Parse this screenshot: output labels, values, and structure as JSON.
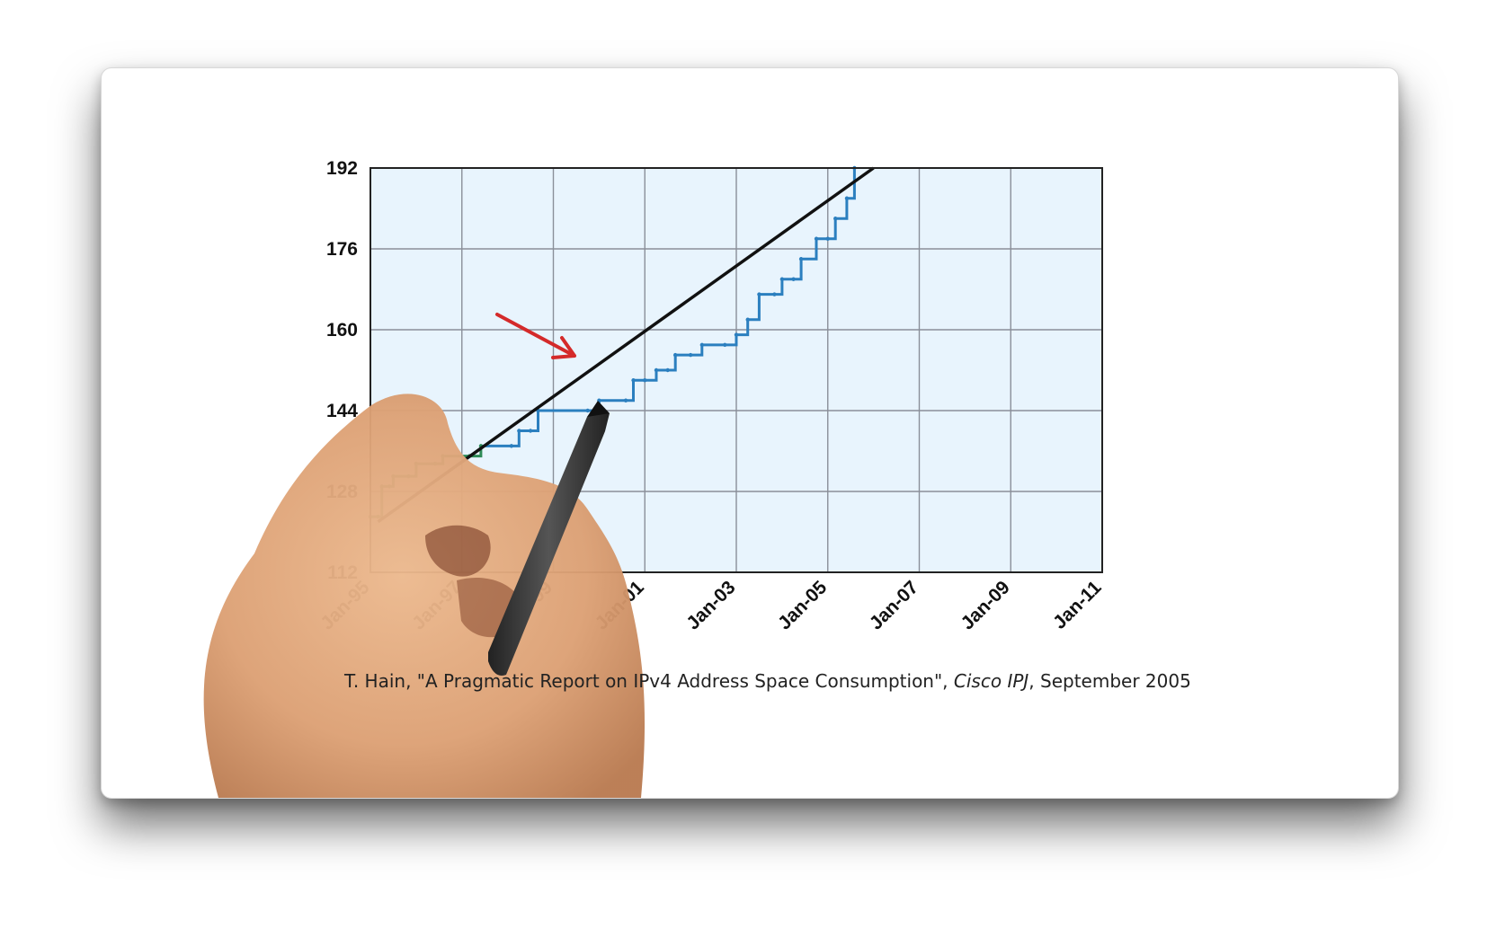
{
  "colors": {
    "plot_bg": "#e8f4fd",
    "grid": "#8a8f99",
    "series_early": "#2e8b57",
    "series_late": "#2b7fbf",
    "trend": "#111111",
    "arrow": "#d42a2a",
    "hand_skin": "#e0a77a",
    "pen": "#3a3a3a"
  },
  "caption": {
    "author": "T. Hain, \"A Pragmatic Report on IPv4 Address Space Consumption\", ",
    "journal": "Cisco IPJ",
    "date": ", September 2005"
  },
  "chart_data": {
    "type": "line",
    "title": "",
    "xlabel": "",
    "ylabel": "",
    "x_ticks": [
      "Jan-95",
      "Jan-97",
      "Jan-99",
      "Jan-01",
      "Jan-03",
      "Jan-05",
      "Jan-07",
      "Jan-09",
      "Jan-11"
    ],
    "y_ticks": [
      112,
      128,
      144,
      160,
      176,
      192
    ],
    "xlim": [
      "1995-01",
      "2011-01"
    ],
    "ylim": [
      112,
      192
    ],
    "grid": true,
    "series": [
      {
        "style": "step",
        "points": [
          [
            "1995-01",
            123.0
          ],
          [
            "1995-03",
            123.0
          ],
          [
            "1995-04",
            129.0
          ],
          [
            "1995-06",
            129.0
          ],
          [
            "1995-07",
            131.0
          ],
          [
            "1995-11",
            131.0
          ],
          [
            "1996-01",
            133.5
          ],
          [
            "1996-06",
            133.5
          ],
          [
            "1996-08",
            135.0
          ],
          [
            "1997-03",
            135.0
          ],
          [
            "1997-06",
            137.0
          ],
          [
            "1998-02",
            137.0
          ],
          [
            "1998-04",
            140.0
          ],
          [
            "1998-07",
            140.0
          ],
          [
            "1998-09",
            144.0
          ],
          [
            "1999-10",
            144.0
          ],
          [
            "2000-01",
            146.0
          ],
          [
            "2000-08",
            146.0
          ],
          [
            "2000-10",
            150.0
          ],
          [
            "2001-01",
            150.0
          ],
          [
            "2001-04",
            152.0
          ],
          [
            "2001-07",
            152.0
          ],
          [
            "2001-09",
            155.0
          ],
          [
            "2002-01",
            155.0
          ],
          [
            "2002-04",
            157.0
          ],
          [
            "2002-10",
            157.0
          ],
          [
            "2003-01",
            159.0
          ],
          [
            "2003-04",
            162.0
          ],
          [
            "2003-07",
            167.0
          ],
          [
            "2003-11",
            167.0
          ],
          [
            "2004-01",
            170.0
          ],
          [
            "2004-04",
            170.0
          ],
          [
            "2004-06",
            174.0
          ],
          [
            "2004-10",
            178.0
          ],
          [
            "2005-01",
            178.0
          ],
          [
            "2005-03",
            182.0
          ],
          [
            "2005-06",
            186.0
          ],
          [
            "2005-08",
            192.0
          ]
        ]
      },
      {
        "style": "straight",
        "points": [
          [
            "1995-03",
            122.0
          ],
          [
            "2006-01",
            192.0
          ]
        ]
      }
    ]
  }
}
